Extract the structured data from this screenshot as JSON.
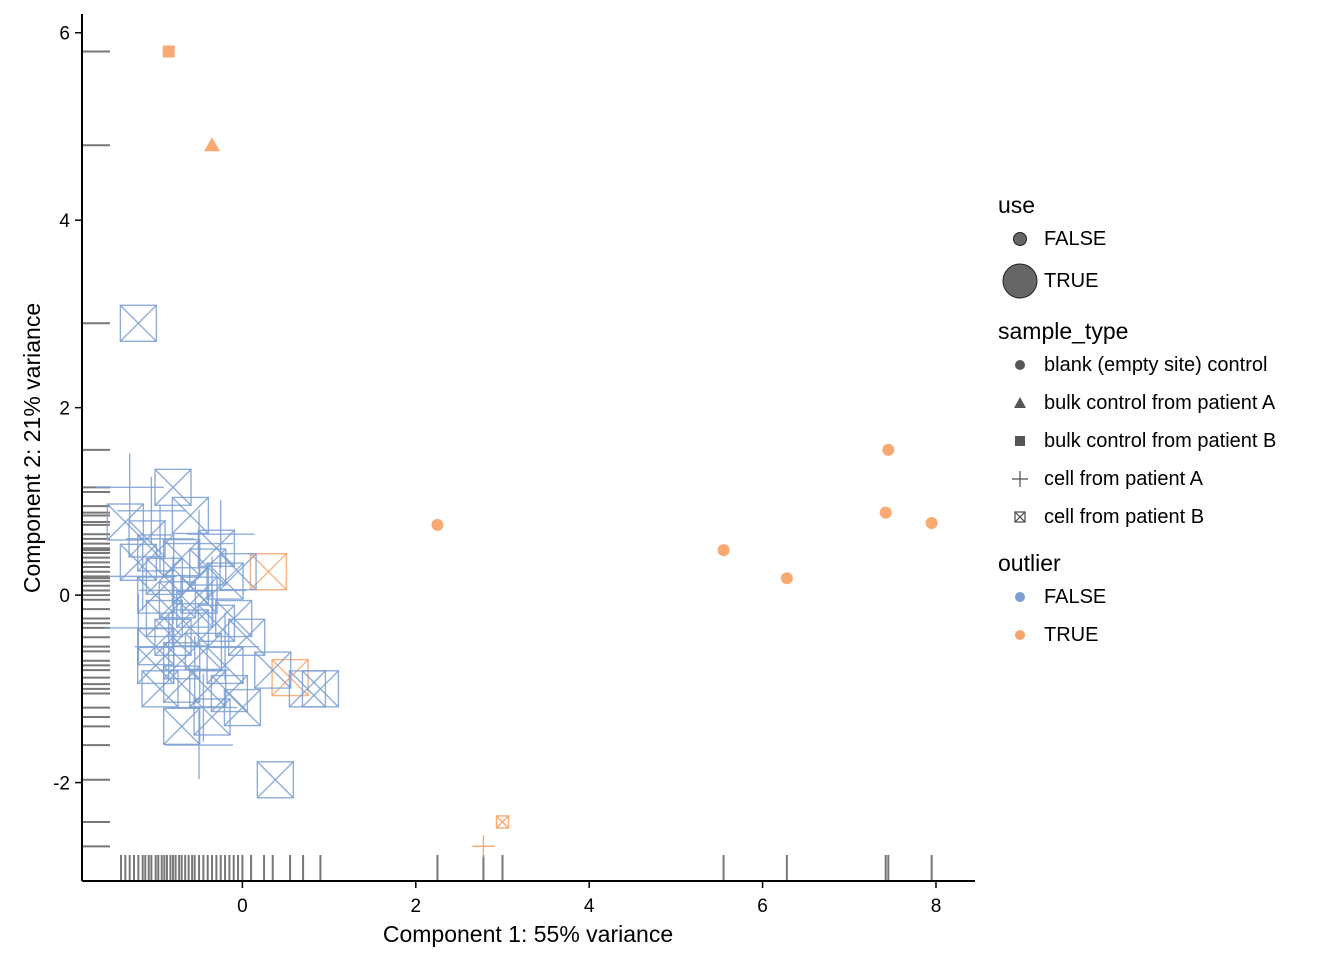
{
  "chart_data": {
    "type": "scatter",
    "xlabel": "Component 1: 55% variance",
    "ylabel": "Component 2: 21% variance",
    "xlim": [
      -1.85,
      8.45
    ],
    "ylim": [
      -3.05,
      6.2
    ],
    "x_ticks": [
      "0",
      "2",
      "4",
      "6",
      "8"
    ],
    "y_ticks": [
      "-2",
      "0",
      "2",
      "4",
      "6"
    ],
    "x_tick_values": [
      0,
      2,
      4,
      6,
      8
    ],
    "y_tick_values": [
      -2,
      0,
      2,
      4,
      6
    ],
    "colors": {
      "FALSE": "#7b9fd4",
      "TRUE": "#f9a46a",
      "rug": "#555555"
    },
    "legends": {
      "use": {
        "title": "use",
        "items": [
          "FALSE",
          "TRUE"
        ]
      },
      "sample_type": {
        "title": "sample_type",
        "items": [
          "blank (empty site) control",
          "bulk control from patient A",
          "bulk control from patient B",
          "cell from patient A",
          "cell from patient B"
        ]
      },
      "outlier": {
        "title": "outlier",
        "items": [
          "FALSE",
          "TRUE"
        ]
      }
    },
    "points": [
      {
        "x": -0.85,
        "y": 5.8,
        "sample_type": "bulk control from patient B",
        "outlier": "TRUE",
        "use": "FALSE"
      },
      {
        "x": -0.35,
        "y": 4.8,
        "sample_type": "bulk control from patient A",
        "outlier": "TRUE",
        "use": "FALSE"
      },
      {
        "x": 2.25,
        "y": 0.75,
        "sample_type": "blank (empty site) control",
        "outlier": "TRUE",
        "use": "FALSE"
      },
      {
        "x": 5.55,
        "y": 0.48,
        "sample_type": "blank (empty site) control",
        "outlier": "TRUE",
        "use": "FALSE"
      },
      {
        "x": 6.28,
        "y": 0.18,
        "sample_type": "blank (empty site) control",
        "outlier": "TRUE",
        "use": "FALSE"
      },
      {
        "x": 7.45,
        "y": 1.55,
        "sample_type": "blank (empty site) control",
        "outlier": "TRUE",
        "use": "FALSE"
      },
      {
        "x": 7.42,
        "y": 0.88,
        "sample_type": "blank (empty site) control",
        "outlier": "TRUE",
        "use": "FALSE"
      },
      {
        "x": 7.95,
        "y": 0.77,
        "sample_type": "blank (empty site) control",
        "outlier": "TRUE",
        "use": "FALSE"
      },
      {
        "x": 3.0,
        "y": -2.42,
        "sample_type": "cell from patient B",
        "outlier": "TRUE",
        "use": "FALSE"
      },
      {
        "x": 2.78,
        "y": -2.68,
        "sample_type": "cell from patient A",
        "outlier": "TRUE",
        "use": "FALSE"
      },
      {
        "x": 0.3,
        "y": 0.25,
        "sample_type": "cell from patient B",
        "outlier": "TRUE",
        "use": "TRUE"
      },
      {
        "x": 0.55,
        "y": -0.88,
        "sample_type": "cell from patient B",
        "outlier": "TRUE",
        "use": "TRUE"
      },
      {
        "x": -1.2,
        "y": 2.9,
        "sample_type": "cell from patient B",
        "outlier": "FALSE",
        "use": "TRUE"
      },
      {
        "x": -0.8,
        "y": 1.15,
        "sample_type": "cell from patient B",
        "outlier": "FALSE",
        "use": "TRUE"
      },
      {
        "x": -0.6,
        "y": 0.85,
        "sample_type": "cell from patient B",
        "outlier": "FALSE",
        "use": "TRUE"
      },
      {
        "x": -1.35,
        "y": 0.78,
        "sample_type": "cell from patient B",
        "outlier": "FALSE",
        "use": "TRUE"
      },
      {
        "x": -1.1,
        "y": 0.6,
        "sample_type": "cell from patient B",
        "outlier": "FALSE",
        "use": "TRUE"
      },
      {
        "x": -1.2,
        "y": 0.35,
        "sample_type": "cell from patient B",
        "outlier": "FALSE",
        "use": "TRUE"
      },
      {
        "x": -1.0,
        "y": 0.45,
        "sample_type": "cell from patient B",
        "outlier": "FALSE",
        "use": "TRUE"
      },
      {
        "x": -0.9,
        "y": 0.2,
        "sample_type": "cell from patient B",
        "outlier": "FALSE",
        "use": "TRUE"
      },
      {
        "x": -0.7,
        "y": 0.4,
        "sample_type": "cell from patient B",
        "outlier": "FALSE",
        "use": "TRUE"
      },
      {
        "x": -0.6,
        "y": 0.1,
        "sample_type": "cell from patient B",
        "outlier": "FALSE",
        "use": "TRUE"
      },
      {
        "x": -0.4,
        "y": 0.3,
        "sample_type": "cell from patient B",
        "outlier": "FALSE",
        "use": "TRUE"
      },
      {
        "x": -0.2,
        "y": 0.15,
        "sample_type": "cell from patient B",
        "outlier": "FALSE",
        "use": "TRUE"
      },
      {
        "x": -0.05,
        "y": 0.25,
        "sample_type": "cell from patient B",
        "outlier": "FALSE",
        "use": "TRUE"
      },
      {
        "x": -1.0,
        "y": 0.0,
        "sample_type": "cell from patient B",
        "outlier": "FALSE",
        "use": "TRUE"
      },
      {
        "x": -0.75,
        "y": -0.05,
        "sample_type": "cell from patient B",
        "outlier": "FALSE",
        "use": "TRUE"
      },
      {
        "x": -0.5,
        "y": 0.0,
        "sample_type": "cell from patient B",
        "outlier": "FALSE",
        "use": "TRUE"
      },
      {
        "x": -0.9,
        "y": -0.25,
        "sample_type": "cell from patient B",
        "outlier": "FALSE",
        "use": "TRUE"
      },
      {
        "x": -1.0,
        "y": -0.55,
        "sample_type": "cell from patient B",
        "outlier": "FALSE",
        "use": "TRUE"
      },
      {
        "x": -0.8,
        "y": -0.45,
        "sample_type": "cell from patient B",
        "outlier": "FALSE",
        "use": "TRUE"
      },
      {
        "x": -0.6,
        "y": -0.35,
        "sample_type": "cell from patient B",
        "outlier": "FALSE",
        "use": "TRUE"
      },
      {
        "x": -0.3,
        "y": -0.3,
        "sample_type": "cell from patient B",
        "outlier": "FALSE",
        "use": "TRUE"
      },
      {
        "x": -0.1,
        "y": -0.25,
        "sample_type": "cell from patient B",
        "outlier": "FALSE",
        "use": "TRUE"
      },
      {
        "x": 0.05,
        "y": -0.45,
        "sample_type": "cell from patient B",
        "outlier": "FALSE",
        "use": "TRUE"
      },
      {
        "x": -1.0,
        "y": -0.75,
        "sample_type": "cell from patient B",
        "outlier": "FALSE",
        "use": "TRUE"
      },
      {
        "x": -0.7,
        "y": -0.7,
        "sample_type": "cell from patient B",
        "outlier": "FALSE",
        "use": "TRUE"
      },
      {
        "x": -0.45,
        "y": -0.6,
        "sample_type": "cell from patient B",
        "outlier": "FALSE",
        "use": "TRUE"
      },
      {
        "x": -0.2,
        "y": -0.75,
        "sample_type": "cell from patient B",
        "outlier": "FALSE",
        "use": "TRUE"
      },
      {
        "x": 0.35,
        "y": -0.8,
        "sample_type": "cell from patient B",
        "outlier": "FALSE",
        "use": "TRUE"
      },
      {
        "x": -0.95,
        "y": -1.0,
        "sample_type": "cell from patient B",
        "outlier": "FALSE",
        "use": "TRUE"
      },
      {
        "x": -0.7,
        "y": -0.95,
        "sample_type": "cell from patient B",
        "outlier": "FALSE",
        "use": "TRUE"
      },
      {
        "x": -0.4,
        "y": -1.0,
        "sample_type": "cell from patient B",
        "outlier": "FALSE",
        "use": "TRUE"
      },
      {
        "x": -0.15,
        "y": -1.05,
        "sample_type": "cell from patient B",
        "outlier": "FALSE",
        "use": "TRUE"
      },
      {
        "x": 0.0,
        "y": -1.2,
        "sample_type": "cell from patient B",
        "outlier": "FALSE",
        "use": "TRUE"
      },
      {
        "x": 0.75,
        "y": -1.0,
        "sample_type": "cell from patient B",
        "outlier": "FALSE",
        "use": "TRUE"
      },
      {
        "x": 0.9,
        "y": -1.0,
        "sample_type": "cell from patient B",
        "outlier": "FALSE",
        "use": "TRUE"
      },
      {
        "x": -0.35,
        "y": -1.3,
        "sample_type": "cell from patient B",
        "outlier": "FALSE",
        "use": "TRUE"
      },
      {
        "x": -0.7,
        "y": -1.4,
        "sample_type": "cell from patient B",
        "outlier": "FALSE",
        "use": "TRUE"
      },
      {
        "x": 0.38,
        "y": -1.97,
        "sample_type": "cell from patient B",
        "outlier": "FALSE",
        "use": "TRUE"
      },
      {
        "x": -0.3,
        "y": 0.5,
        "sample_type": "cell from patient B",
        "outlier": "FALSE",
        "use": "TRUE"
      },
      {
        "x": -0.55,
        "y": -0.15,
        "sample_type": "cell from patient B",
        "outlier": "FALSE",
        "use": "TRUE"
      },
      {
        "x": -1.3,
        "y": 1.15,
        "sample_type": "cell from patient A",
        "outlier": "FALSE",
        "use": "TRUE"
      },
      {
        "x": -1.05,
        "y": 0.9,
        "sample_type": "cell from patient A",
        "outlier": "FALSE",
        "use": "TRUE"
      },
      {
        "x": -0.95,
        "y": 0.6,
        "sample_type": "cell from patient A",
        "outlier": "FALSE",
        "use": "TRUE"
      },
      {
        "x": -0.5,
        "y": 0.55,
        "sample_type": "cell from patient A",
        "outlier": "FALSE",
        "use": "TRUE"
      },
      {
        "x": -0.25,
        "y": 0.65,
        "sample_type": "cell from patient A",
        "outlier": "FALSE",
        "use": "TRUE"
      },
      {
        "x": -1.15,
        "y": 0.2,
        "sample_type": "cell from patient A",
        "outlier": "FALSE",
        "use": "TRUE"
      },
      {
        "x": -0.8,
        "y": 0.05,
        "sample_type": "cell from patient A",
        "outlier": "FALSE",
        "use": "TRUE"
      },
      {
        "x": -0.35,
        "y": 0.05,
        "sample_type": "cell from patient A",
        "outlier": "FALSE",
        "use": "TRUE"
      },
      {
        "x": -1.2,
        "y": -0.35,
        "sample_type": "cell from patient A",
        "outlier": "FALSE",
        "use": "TRUE"
      },
      {
        "x": -0.85,
        "y": -0.55,
        "sample_type": "cell from patient A",
        "outlier": "FALSE",
        "use": "TRUE"
      },
      {
        "x": -0.55,
        "y": -0.8,
        "sample_type": "cell from patient A",
        "outlier": "FALSE",
        "use": "TRUE"
      },
      {
        "x": -0.2,
        "y": -0.55,
        "sample_type": "cell from patient A",
        "outlier": "FALSE",
        "use": "TRUE"
      },
      {
        "x": -0.45,
        "y": -1.2,
        "sample_type": "cell from patient A",
        "outlier": "FALSE",
        "use": "TRUE"
      },
      {
        "x": -0.5,
        "y": -1.6,
        "sample_type": "cell from patient A",
        "outlier": "FALSE",
        "use": "TRUE"
      }
    ],
    "rug_x": [
      -1.4,
      -1.35,
      -1.3,
      -1.25,
      -1.2,
      -1.15,
      -1.12,
      -1.08,
      -1.05,
      -1.0,
      -0.97,
      -0.93,
      -0.9,
      -0.87,
      -0.83,
      -0.8,
      -0.77,
      -0.73,
      -0.7,
      -0.66,
      -0.62,
      -0.58,
      -0.55,
      -0.5,
      -0.45,
      -0.4,
      -0.35,
      -0.3,
      -0.25,
      -0.2,
      -0.15,
      -0.1,
      -0.05,
      0.0,
      0.1,
      0.25,
      0.35,
      0.55,
      0.7,
      0.9,
      2.25,
      2.78,
      3.0,
      5.55,
      6.28,
      7.42,
      7.45,
      7.95
    ],
    "rug_y": [
      5.8,
      4.8,
      2.9,
      1.55,
      1.15,
      1.1,
      0.95,
      0.88,
      0.85,
      0.78,
      0.75,
      0.65,
      0.6,
      0.55,
      0.5,
      0.48,
      0.45,
      0.4,
      0.35,
      0.3,
      0.25,
      0.2,
      0.18,
      0.15,
      0.1,
      0.05,
      0.0,
      -0.05,
      -0.15,
      -0.25,
      -0.3,
      -0.35,
      -0.45,
      -0.55,
      -0.6,
      -0.7,
      -0.75,
      -0.8,
      -0.88,
      -0.95,
      -1.0,
      -1.05,
      -1.2,
      -1.3,
      -1.4,
      -1.6,
      -1.97,
      -2.42,
      -2.68
    ]
  }
}
